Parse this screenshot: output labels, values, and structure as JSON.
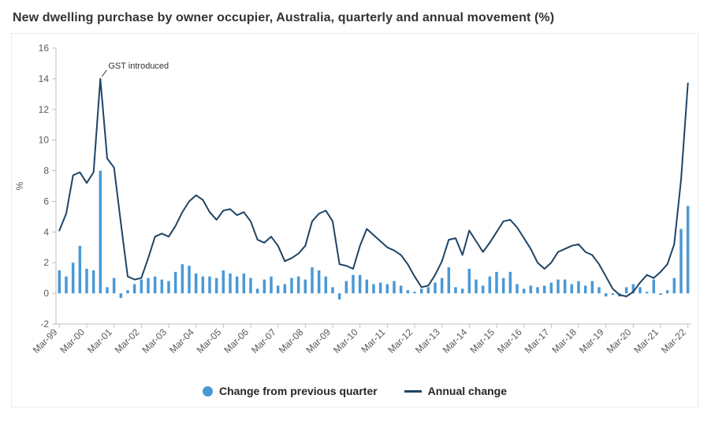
{
  "title": "New dwelling purchase by owner occupier, Australia, quarterly and annual movement (%)",
  "colors": {
    "bar": "#4a99d6",
    "line": "#1f4466",
    "axis": "#bfbfbf",
    "tick_text": "#595959",
    "annotation_text": "#333333"
  },
  "chart_data": {
    "type": "bar",
    "subtype": "bar-and-line-combo",
    "title": "New dwelling purchase by owner occupier, Australia, quarterly and annual movement (%)",
    "xlabel": "",
    "ylabel": "%",
    "ylim": [
      -2,
      16
    ],
    "yticks": [
      16,
      14,
      12,
      10,
      8,
      6,
      4,
      2,
      0,
      -2
    ],
    "grid": "off",
    "legend_position": "bottom",
    "x_tick_frequency": "every Mar quarter",
    "categories": [
      "Mar-99",
      "Jun-99",
      "Sep-99",
      "Dec-99",
      "Mar-00",
      "Jun-00",
      "Sep-00",
      "Dec-00",
      "Mar-01",
      "Jun-01",
      "Sep-01",
      "Dec-01",
      "Mar-02",
      "Jun-02",
      "Sep-02",
      "Dec-02",
      "Mar-03",
      "Jun-03",
      "Sep-03",
      "Dec-03",
      "Mar-04",
      "Jun-04",
      "Sep-04",
      "Dec-04",
      "Mar-05",
      "Jun-05",
      "Sep-05",
      "Dec-05",
      "Mar-06",
      "Jun-06",
      "Sep-06",
      "Dec-06",
      "Mar-07",
      "Jun-07",
      "Sep-07",
      "Dec-07",
      "Mar-08",
      "Jun-08",
      "Sep-08",
      "Dec-08",
      "Mar-09",
      "Jun-09",
      "Sep-09",
      "Dec-09",
      "Mar-10",
      "Jun-10",
      "Sep-10",
      "Dec-10",
      "Mar-11",
      "Jun-11",
      "Sep-11",
      "Dec-11",
      "Mar-12",
      "Jun-12",
      "Sep-12",
      "Dec-12",
      "Mar-13",
      "Jun-13",
      "Sep-13",
      "Dec-13",
      "Mar-14",
      "Jun-14",
      "Sep-14",
      "Dec-14",
      "Mar-15",
      "Jun-15",
      "Sep-15",
      "Dec-15",
      "Mar-16",
      "Jun-16",
      "Sep-16",
      "Dec-16",
      "Mar-17",
      "Jun-17",
      "Sep-17",
      "Dec-17",
      "Mar-18",
      "Jun-18",
      "Sep-18",
      "Dec-18",
      "Mar-19",
      "Jun-19",
      "Sep-19",
      "Dec-19",
      "Mar-20",
      "Jun-20",
      "Sep-20",
      "Dec-20",
      "Mar-21",
      "Jun-21",
      "Sep-21",
      "Dec-21",
      "Mar-22"
    ],
    "series": [
      {
        "name": "Change from previous quarter",
        "render": "bar",
        "color": "#4a99d6",
        "values": [
          1.5,
          1.1,
          2.0,
          3.1,
          1.6,
          1.5,
          8.0,
          0.4,
          1.0,
          -0.3,
          0.2,
          0.6,
          0.9,
          1.0,
          1.1,
          0.9,
          0.8,
          1.4,
          1.9,
          1.8,
          1.3,
          1.1,
          1.1,
          1.0,
          1.5,
          1.3,
          1.1,
          1.3,
          1.0,
          0.3,
          0.9,
          1.1,
          0.5,
          0.6,
          1.0,
          1.1,
          0.9,
          1.7,
          1.5,
          1.1,
          0.4,
          -0.4,
          0.8,
          1.2,
          1.2,
          0.9,
          0.6,
          0.7,
          0.6,
          0.8,
          0.5,
          0.2,
          0.1,
          0.3,
          0.4,
          0.7,
          1.0,
          1.7,
          0.4,
          0.3,
          1.6,
          0.9,
          0.5,
          1.1,
          1.4,
          1.0,
          1.4,
          0.6,
          0.3,
          0.5,
          0.4,
          0.5,
          0.7,
          0.9,
          0.9,
          0.6,
          0.8,
          0.5,
          0.8,
          0.4,
          -0.2,
          -0.1,
          -0.2,
          0.4,
          0.6,
          0.4,
          0.1,
          0.9,
          -0.1,
          0.2,
          1.0,
          4.2,
          5.7
        ]
      },
      {
        "name": "Annual change",
        "render": "line",
        "color": "#1f4466",
        "values": [
          4.1,
          5.2,
          7.7,
          7.9,
          7.2,
          7.9,
          14.0,
          8.8,
          8.2,
          4.6,
          1.1,
          0.9,
          1.0,
          2.3,
          3.7,
          3.9,
          3.7,
          4.4,
          5.3,
          6.0,
          6.4,
          6.1,
          5.3,
          4.8,
          5.4,
          5.5,
          5.1,
          5.3,
          4.7,
          3.5,
          3.3,
          3.7,
          3.1,
          2.1,
          2.3,
          2.6,
          3.1,
          4.7,
          5.2,
          5.4,
          4.7,
          1.9,
          1.8,
          1.6,
          3.1,
          4.2,
          3.8,
          3.4,
          3.0,
          2.8,
          2.5,
          1.9,
          1.1,
          0.4,
          0.5,
          1.2,
          2.1,
          3.5,
          3.6,
          2.5,
          4.1,
          3.4,
          2.7,
          3.3,
          4.0,
          4.7,
          4.8,
          4.3,
          3.6,
          2.9,
          2.0,
          1.6,
          2.0,
          2.7,
          2.9,
          3.1,
          3.2,
          2.7,
          2.5,
          1.9,
          1.1,
          0.3,
          -0.1,
          -0.2,
          0.1,
          0.7,
          1.2,
          1.0,
          1.4,
          1.9,
          3.2,
          7.4,
          13.7
        ]
      }
    ],
    "annotation": {
      "text": "GST introduced",
      "quarter": "Sep-00",
      "value": 14.0
    }
  }
}
